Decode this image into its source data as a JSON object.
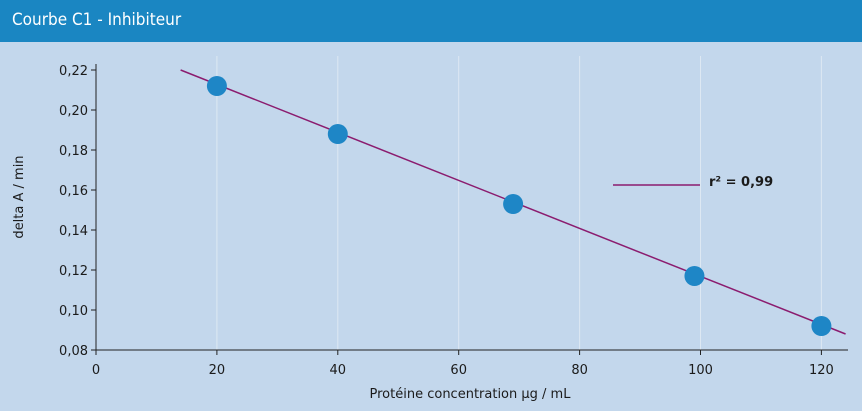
{
  "header": {
    "title": "Courbe C1 - Inhibiteur"
  },
  "colors": {
    "header_bg": "#1a86c2",
    "plot_bg": "#c3d7ec",
    "point": "#1e86c6",
    "line": "#8b1c6f",
    "grid": "#dde8f3"
  },
  "legend": {
    "label": "r² = 0,99",
    "placement": "right"
  },
  "chart_data": {
    "type": "scatter",
    "title": "Courbe C1 - Inhibiteur",
    "xlabel": "Protéine concentration µg / mL",
    "ylabel": "delta A / min",
    "xlim": [
      0,
      125
    ],
    "ylim": [
      0.08,
      0.22
    ],
    "grid": true,
    "x_ticks": [
      {
        "v": 0,
        "label": "0"
      },
      {
        "v": 20,
        "label": "20"
      },
      {
        "v": 40,
        "label": "40"
      },
      {
        "v": 60,
        "label": "60"
      },
      {
        "v": 80,
        "label": "80"
      },
      {
        "v": 100,
        "label": "100"
      },
      {
        "v": 120,
        "label": "120"
      }
    ],
    "y_ticks": [
      {
        "v": 0.08,
        "label": "0,08"
      },
      {
        "v": 0.1,
        "label": "0,10"
      },
      {
        "v": 0.12,
        "label": "0,12"
      },
      {
        "v": 0.14,
        "label": "0,14"
      },
      {
        "v": 0.16,
        "label": "0,16"
      },
      {
        "v": 0.18,
        "label": "0,18"
      },
      {
        "v": 0.2,
        "label": "0,20"
      },
      {
        "v": 0.22,
        "label": "0,22"
      }
    ],
    "points": [
      {
        "x": 20,
        "y": 0.212
      },
      {
        "x": 40,
        "y": 0.188
      },
      {
        "x": 69,
        "y": 0.153
      },
      {
        "x": 99,
        "y": 0.117
      },
      {
        "x": 120,
        "y": 0.092
      }
    ],
    "fit": {
      "x1": 14,
      "y1": 0.22,
      "x2": 124,
      "y2": 0.088
    }
  }
}
